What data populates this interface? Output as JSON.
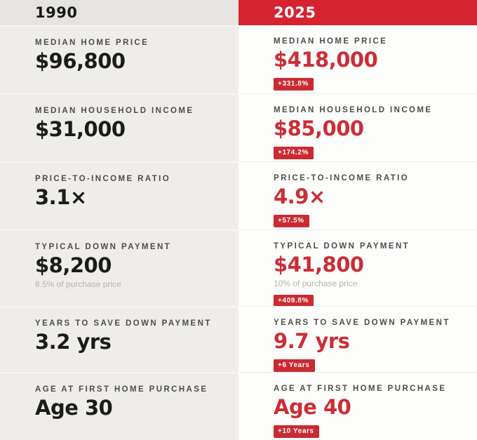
{
  "header": {
    "left_year": "1990",
    "right_year": "2025"
  },
  "rows": [
    {
      "label": "MEDIAN HOME PRICE",
      "left": {
        "value": "$96,800"
      },
      "right": {
        "value": "$418,000",
        "badge": "+331.8%"
      }
    },
    {
      "label": "MEDIAN HOUSEHOLD INCOME",
      "left": {
        "value": "$31,000"
      },
      "right": {
        "value": "$85,000",
        "badge": "+174.2%"
      }
    },
    {
      "label": "PRICE-TO-INCOME RATIO",
      "left": {
        "value": "3.1×"
      },
      "right": {
        "value": "4.9×",
        "badge": "+57.5%"
      }
    },
    {
      "label": "TYPICAL DOWN PAYMENT",
      "left": {
        "value": "$8,200",
        "sub": "8.5% of purchase price"
      },
      "right": {
        "value": "$41,800",
        "sub": "10% of purchase price",
        "badge": "+409.8%"
      }
    },
    {
      "label": "YEARS TO SAVE DOWN PAYMENT",
      "left": {
        "value": "3.2 yrs"
      },
      "right": {
        "value": "9.7 yrs",
        "badge": "+6 Years"
      }
    },
    {
      "label": "AGE AT FIRST HOME PURCHASE",
      "left": {
        "value": "Age 30"
      },
      "right": {
        "value": "Age 40",
        "badge": "+10 Years"
      }
    }
  ],
  "colors": {
    "header_red": "#d5232f",
    "value_red": "#cb2e35",
    "badge_red": "#cb2a31",
    "left_header_bg": "#e5e4e1",
    "left_row_bg": "#eeedeb",
    "right_row_bg": "#fdfdfc",
    "label_gray": "#4c4c4a",
    "value_dark": "#1b1b19",
    "sub_gray": "#b5b3b0"
  },
  "chart_data": {
    "type": "table",
    "columns": [
      "1990",
      "2025"
    ],
    "metrics": [
      {
        "label": "Median Home Price",
        "values": [
          "$96,800",
          "$418,000"
        ],
        "change": "+331.8%"
      },
      {
        "label": "Median Household Income",
        "values": [
          "$31,000",
          "$85,000"
        ],
        "change": "+174.2%"
      },
      {
        "label": "Price-to-Income Ratio",
        "values": [
          "3.1×",
          "4.9×"
        ],
        "change": "+57.5%"
      },
      {
        "label": "Typical Down Payment",
        "values": [
          "$8,200",
          "$41,800"
        ],
        "notes": [
          "8.5% of purchase price",
          "10% of purchase price"
        ],
        "change": "+409.8%"
      },
      {
        "label": "Years to Save Down Payment",
        "values": [
          "3.2 yrs",
          "9.7 yrs"
        ],
        "change": "+6 Years"
      },
      {
        "label": "Age at First Home Purchase",
        "values": [
          "Age 30",
          "Age 40"
        ],
        "change": "+10 Years"
      }
    ]
  }
}
